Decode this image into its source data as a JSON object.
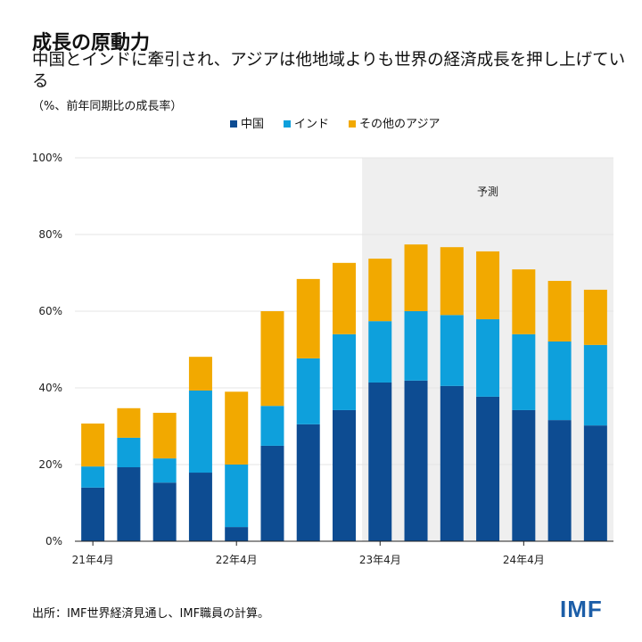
{
  "title": "成長の原動力",
  "subtitle": "中国とインドに牽引され、アジアは他地域よりも世界の経済成長を押し上げている",
  "unit": "（%、前年同期比の成長率）",
  "source": "出所：IMF世界経済見通し、IMF職員の計算。",
  "logo": "IMF",
  "chart_data": {
    "type": "bar",
    "stacked": true,
    "forecast_label": "予測",
    "forecast_start_index": 8,
    "x_tick_labels": [
      {
        "index": 0,
        "label": "21年4月"
      },
      {
        "index": 4,
        "label": "22年4月"
      },
      {
        "index": 8,
        "label": "23年4月"
      },
      {
        "index": 12,
        "label": "24年4月"
      }
    ],
    "y_ticks": [
      "0%",
      "20%",
      "40%",
      "60%",
      "80%",
      "100%"
    ],
    "ylim": [
      0,
      100
    ],
    "grid": true,
    "legend_position": "top",
    "series": [
      {
        "name": "中国",
        "color": "#0d4c92",
        "values": [
          14.0,
          19.3,
          15.3,
          17.9,
          3.7,
          24.9,
          30.5,
          34.2,
          41.4,
          41.9,
          40.5,
          37.7,
          34.2,
          31.6,
          30.2
        ]
      },
      {
        "name": "インド",
        "color": "#0ea0dc",
        "values": [
          5.5,
          7.7,
          6.3,
          21.4,
          16.3,
          10.4,
          17.2,
          19.8,
          16.0,
          18.1,
          18.5,
          20.2,
          19.8,
          20.5,
          21.0
        ]
      },
      {
        "name": "その他のアジア",
        "color": "#f2a900",
        "values": [
          11.2,
          7.7,
          11.9,
          8.8,
          19.0,
          24.7,
          20.7,
          18.6,
          16.3,
          17.4,
          17.7,
          17.7,
          16.9,
          15.8,
          14.4
        ]
      }
    ]
  }
}
